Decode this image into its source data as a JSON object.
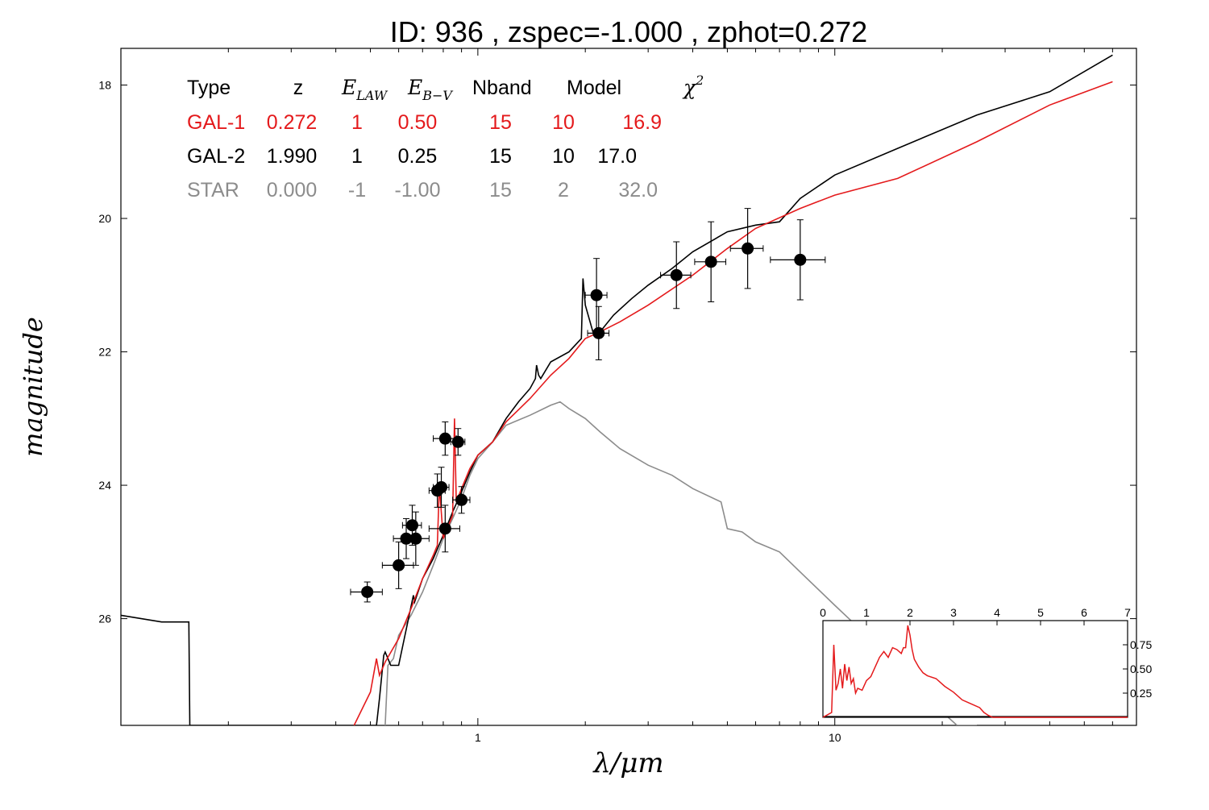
{
  "title": "ID:  936   , zspec=-1.000 , zphot=0.272",
  "colors": {
    "gal1": "#e41a1c",
    "gal2": "#000000",
    "star": "#8c8c8c",
    "points": "#000000"
  },
  "legend": {
    "headers": {
      "type": "Type",
      "z": "z",
      "elaw": "E",
      "elaw_sub": "LAW",
      "ebv": "E",
      "ebv_sub": "B−V",
      "nband": "Nband",
      "model": "Model",
      "chi": "χ",
      "chi_sup": "2"
    },
    "rows": [
      {
        "type": "GAL-1",
        "z": "0.272",
        "elaw": "1",
        "ebv": "0.50",
        "nband": "15",
        "model": "10",
        "chi2": "16.9"
      },
      {
        "type": "GAL-2",
        "z": "1.990",
        "elaw": "1",
        "ebv": "0.25",
        "nband": "15",
        "model": "10",
        "chi2": "17.0"
      },
      {
        "type": "STAR",
        "z": "0.000",
        "elaw": "-1",
        "ebv": "-1.00",
        "nband": "15",
        "model": "2",
        "chi2": "32.0"
      }
    ]
  },
  "chart_data": [
    {
      "type": "line",
      "xlabel": "λ/μm",
      "ylabel": "magnitude",
      "xscale": "log",
      "yaxis_inverted": true,
      "xlim": [
        0.1,
        70
      ],
      "ylim": [
        27.6,
        17.45
      ],
      "xticks": [
        1,
        10
      ],
      "yticks": [
        18,
        20,
        22,
        24,
        26
      ],
      "series": [
        {
          "name": "GAL-2",
          "x": [
            0.1,
            0.13,
            0.15,
            0.155,
            0.156,
            0.25,
            0.52,
            0.53,
            0.545,
            0.55,
            0.565,
            0.57,
            0.6,
            0.66,
            0.665,
            0.7,
            0.75,
            0.8,
            0.85,
            0.9,
            0.95,
            1.0,
            1.1,
            1.2,
            1.3,
            1.4,
            1.45,
            1.46,
            1.48,
            1.5,
            1.6,
            1.8,
            1.95,
            1.97,
            2.0,
            2.1,
            2.2,
            2.4,
            2.7,
            3.0,
            3.5,
            4.0,
            5.0,
            6.0,
            7.0,
            8.0,
            10,
            15,
            25,
            40,
            60
          ],
          "y": [
            25.95,
            26.05,
            26.05,
            26.05,
            27.6,
            27.6,
            27.6,
            27.2,
            26.55,
            26.5,
            26.65,
            26.7,
            26.7,
            25.65,
            25.75,
            25.4,
            25.1,
            24.75,
            24.4,
            24.1,
            23.8,
            23.55,
            23.35,
            23.0,
            22.75,
            22.55,
            22.4,
            22.2,
            22.35,
            22.4,
            22.15,
            22.0,
            21.8,
            20.9,
            21.3,
            21.7,
            21.7,
            21.45,
            21.2,
            21.0,
            20.75,
            20.5,
            20.2,
            20.1,
            20.05,
            19.7,
            19.35,
            18.95,
            18.45,
            18.1,
            17.55
          ]
        },
        {
          "name": "GAL-1",
          "x": [
            0.45,
            0.5,
            0.52,
            0.53,
            0.55,
            0.6,
            0.65,
            0.7,
            0.75,
            0.77,
            0.78,
            0.8,
            0.85,
            0.86,
            0.87,
            0.9,
            0.95,
            1.0,
            1.1,
            1.2,
            1.4,
            1.6,
            1.8,
            2.0,
            2.2,
            2.5,
            3.0,
            4.0,
            5.0,
            6.0,
            8.0,
            10,
            15,
            25,
            40,
            60
          ],
          "y": [
            27.6,
            27.1,
            26.6,
            26.85,
            26.65,
            26.3,
            25.85,
            25.4,
            25.05,
            24.9,
            24.0,
            24.8,
            24.45,
            23.0,
            24.25,
            24.05,
            23.75,
            23.55,
            23.35,
            23.05,
            22.7,
            22.35,
            22.1,
            21.8,
            21.7,
            21.55,
            21.3,
            20.85,
            20.45,
            20.15,
            19.85,
            19.65,
            19.4,
            18.85,
            18.3,
            17.95
          ]
        },
        {
          "name": "STAR",
          "x": [
            0.55,
            0.56,
            0.58,
            0.6,
            0.65,
            0.7,
            0.75,
            0.8,
            0.85,
            0.9,
            0.95,
            1.0,
            1.1,
            1.2,
            1.4,
            1.6,
            1.7,
            1.8,
            2.0,
            2.2,
            2.5,
            3.0,
            3.5,
            4.0,
            4.8,
            5.0,
            5.5,
            6.0,
            7.0,
            8.0,
            10,
            12,
            15,
            18,
            20,
            22,
            25
          ],
          "y": [
            27.6,
            26.7,
            26.6,
            26.25,
            25.95,
            25.6,
            25.2,
            24.8,
            24.5,
            24.2,
            23.85,
            23.6,
            23.35,
            23.1,
            22.95,
            22.8,
            22.75,
            22.85,
            23.0,
            23.2,
            23.45,
            23.7,
            23.85,
            24.05,
            24.25,
            24.65,
            24.7,
            24.85,
            25.0,
            25.3,
            25.8,
            26.2,
            26.6,
            27.1,
            27.4,
            27.6,
            27.6
          ]
        }
      ],
      "points": [
        {
          "x": 0.49,
          "y": 25.6,
          "xerr": 0.05,
          "yerr": 0.15
        },
        {
          "x": 0.6,
          "y": 25.2,
          "xerr": 0.06,
          "yerr": 0.35
        },
        {
          "x": 0.63,
          "y": 24.8,
          "xerr": 0.05,
          "yerr": 0.3
        },
        {
          "x": 0.655,
          "y": 24.6,
          "xerr": 0.04,
          "yerr": 0.3
        },
        {
          "x": 0.67,
          "y": 24.8,
          "xerr": 0.06,
          "yerr": 0.4
        },
        {
          "x": 0.77,
          "y": 24.08,
          "xerr": 0.04,
          "yerr": 0.25
        },
        {
          "x": 0.79,
          "y": 24.03,
          "xerr": 0.04,
          "yerr": 0.3
        },
        {
          "x": 0.81,
          "y": 23.3,
          "xerr": 0.06,
          "yerr": 0.25
        },
        {
          "x": 0.81,
          "y": 24.65,
          "xerr": 0.08,
          "yerr": 0.35
        },
        {
          "x": 0.88,
          "y": 23.35,
          "xerr": 0.04,
          "yerr": 0.2
        },
        {
          "x": 0.9,
          "y": 24.22,
          "xerr": 0.05,
          "yerr": 0.2
        },
        {
          "x": 2.15,
          "y": 21.15,
          "xerr": 0.15,
          "yerr": 0.55
        },
        {
          "x": 2.18,
          "y": 21.72,
          "xerr": 0.15,
          "yerr": 0.4
        },
        {
          "x": 3.6,
          "y": 20.85,
          "xerr": 0.35,
          "yerr": 0.5
        },
        {
          "x": 4.5,
          "y": 20.65,
          "xerr": 0.45,
          "yerr": 0.6
        },
        {
          "x": 5.7,
          "y": 20.45,
          "xerr": 0.6,
          "yerr": 0.6
        },
        {
          "x": 8.0,
          "y": 20.62,
          "xerr": 1.4,
          "yerr": 0.6
        }
      ]
    },
    {
      "type": "line",
      "xlim": [
        0,
        7
      ],
      "ylim": [
        0,
        1.0
      ],
      "xticks": [
        0,
        1,
        2,
        3,
        4,
        5,
        6,
        7
      ],
      "yticks": [
        0.25,
        0.5,
        0.75
      ],
      "series": [
        {
          "x": [
            0.0,
            0.2,
            0.25,
            0.3,
            0.35,
            0.4,
            0.45,
            0.5,
            0.55,
            0.6,
            0.65,
            0.7,
            0.75,
            0.8,
            0.9,
            1.0,
            1.1,
            1.2,
            1.3,
            1.4,
            1.5,
            1.6,
            1.7,
            1.8,
            1.85,
            1.9,
            1.95,
            2.0,
            2.05,
            2.1,
            2.2,
            2.3,
            2.4,
            2.6,
            2.8,
            3.0,
            3.2,
            3.4,
            3.6,
            3.7,
            3.8,
            3.9,
            4.0,
            5.0,
            6.0,
            7.0
          ],
          "y": [
            0.0,
            0.05,
            0.75,
            0.28,
            0.35,
            0.5,
            0.3,
            0.55,
            0.38,
            0.52,
            0.35,
            0.4,
            0.25,
            0.3,
            0.28,
            0.38,
            0.42,
            0.52,
            0.62,
            0.68,
            0.62,
            0.72,
            0.7,
            0.66,
            0.72,
            0.72,
            0.95,
            0.85,
            0.7,
            0.6,
            0.52,
            0.46,
            0.43,
            0.4,
            0.32,
            0.26,
            0.18,
            0.14,
            0.1,
            0.05,
            0.02,
            0.0,
            0.0,
            0.0,
            0.0,
            0.0
          ]
        }
      ]
    }
  ]
}
